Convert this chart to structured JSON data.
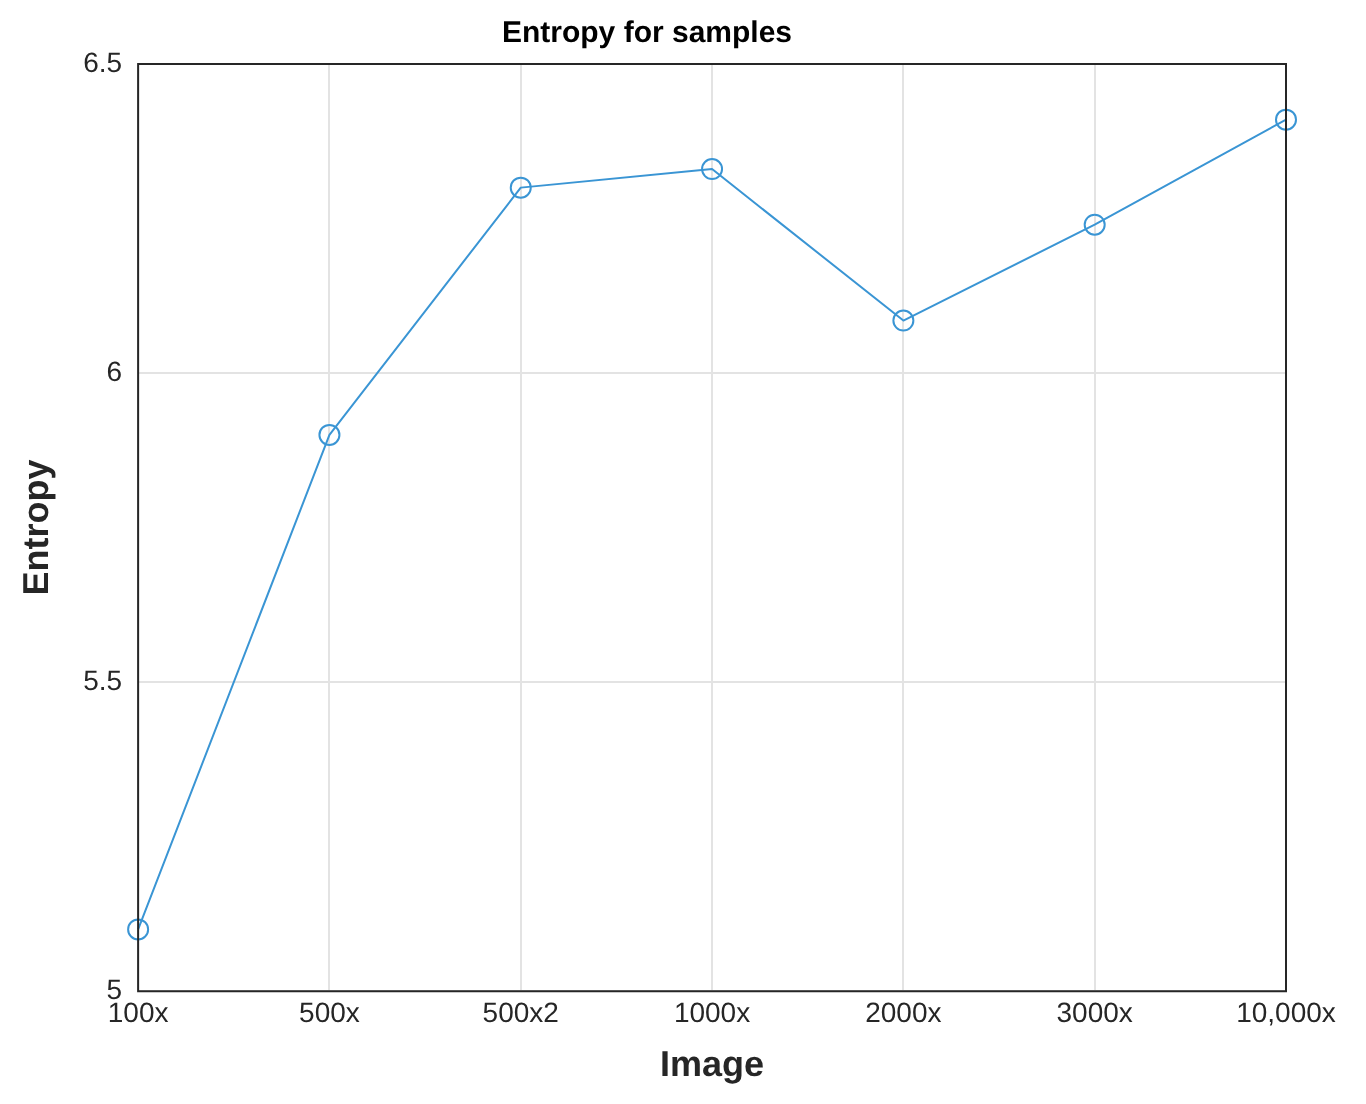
{
  "chart_data": {
    "type": "line",
    "title": "Entropy for samples",
    "xlabel": "Image",
    "ylabel": "Entropy",
    "categories": [
      "100x",
      "500x",
      "500x2",
      "1000x",
      "2000x",
      "3000x",
      "10,000x"
    ],
    "series": [
      {
        "color": "#3a95d4",
        "values": [
          5.1,
          5.9,
          6.3,
          6.33,
          6.085,
          6.24,
          6.41
        ]
      }
    ],
    "ylim": [
      5,
      6.5
    ],
    "yticks": [
      5,
      5.5,
      6,
      6.5
    ],
    "grid": true,
    "legend": false,
    "marker": "circle",
    "line_style": "solid"
  }
}
